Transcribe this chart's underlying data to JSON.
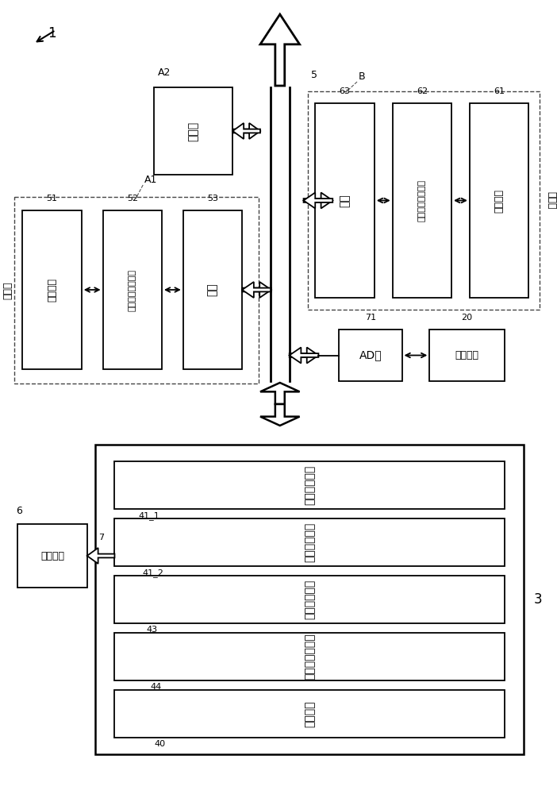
{
  "bg_color": "#ffffff",
  "line_color": "#000000",
  "box_fill": "#ffffff",
  "fig_width": 7.02,
  "fig_height": 10.0,
  "label_1": "1",
  "label_A1": "A1",
  "label_A2": "A2",
  "label_B": "B",
  "label_3": "3",
  "label_5": "5",
  "label_6": "6",
  "label_7": "7",
  "label_20": "20",
  "label_40": "40",
  "label_41_1": "41_1",
  "label_41_2": "41_2",
  "label_43": "43",
  "label_44": "44",
  "label_51": "51",
  "label_52": "52",
  "label_53": "53",
  "label_61": "61",
  "label_62": "62",
  "label_63": "63",
  "label_71": "71",
  "text_indoor_unit": "室内机",
  "text_outdoor_unit": "室外机",
  "text_various_equip_in": "各种设备",
  "text_indoor_local_ctrl": "室内机本地控制器",
  "text_gateway": "网关",
  "text_various_equip_out": "各种设备",
  "text_outdoor_local_ctrl": "室外机本地控制器",
  "text_AD_board": "AD板",
  "text_sensors": "传感器类",
  "text_ctrl_41_1": "室内机控制部",
  "text_ctrl_41_2": "室内机控制部",
  "text_ctrl_43": "室外机控制部",
  "text_ctrl_44": "故障预测控制部",
  "text_ctrl_40": "主控制部",
  "text_maintenance": "检修装置"
}
